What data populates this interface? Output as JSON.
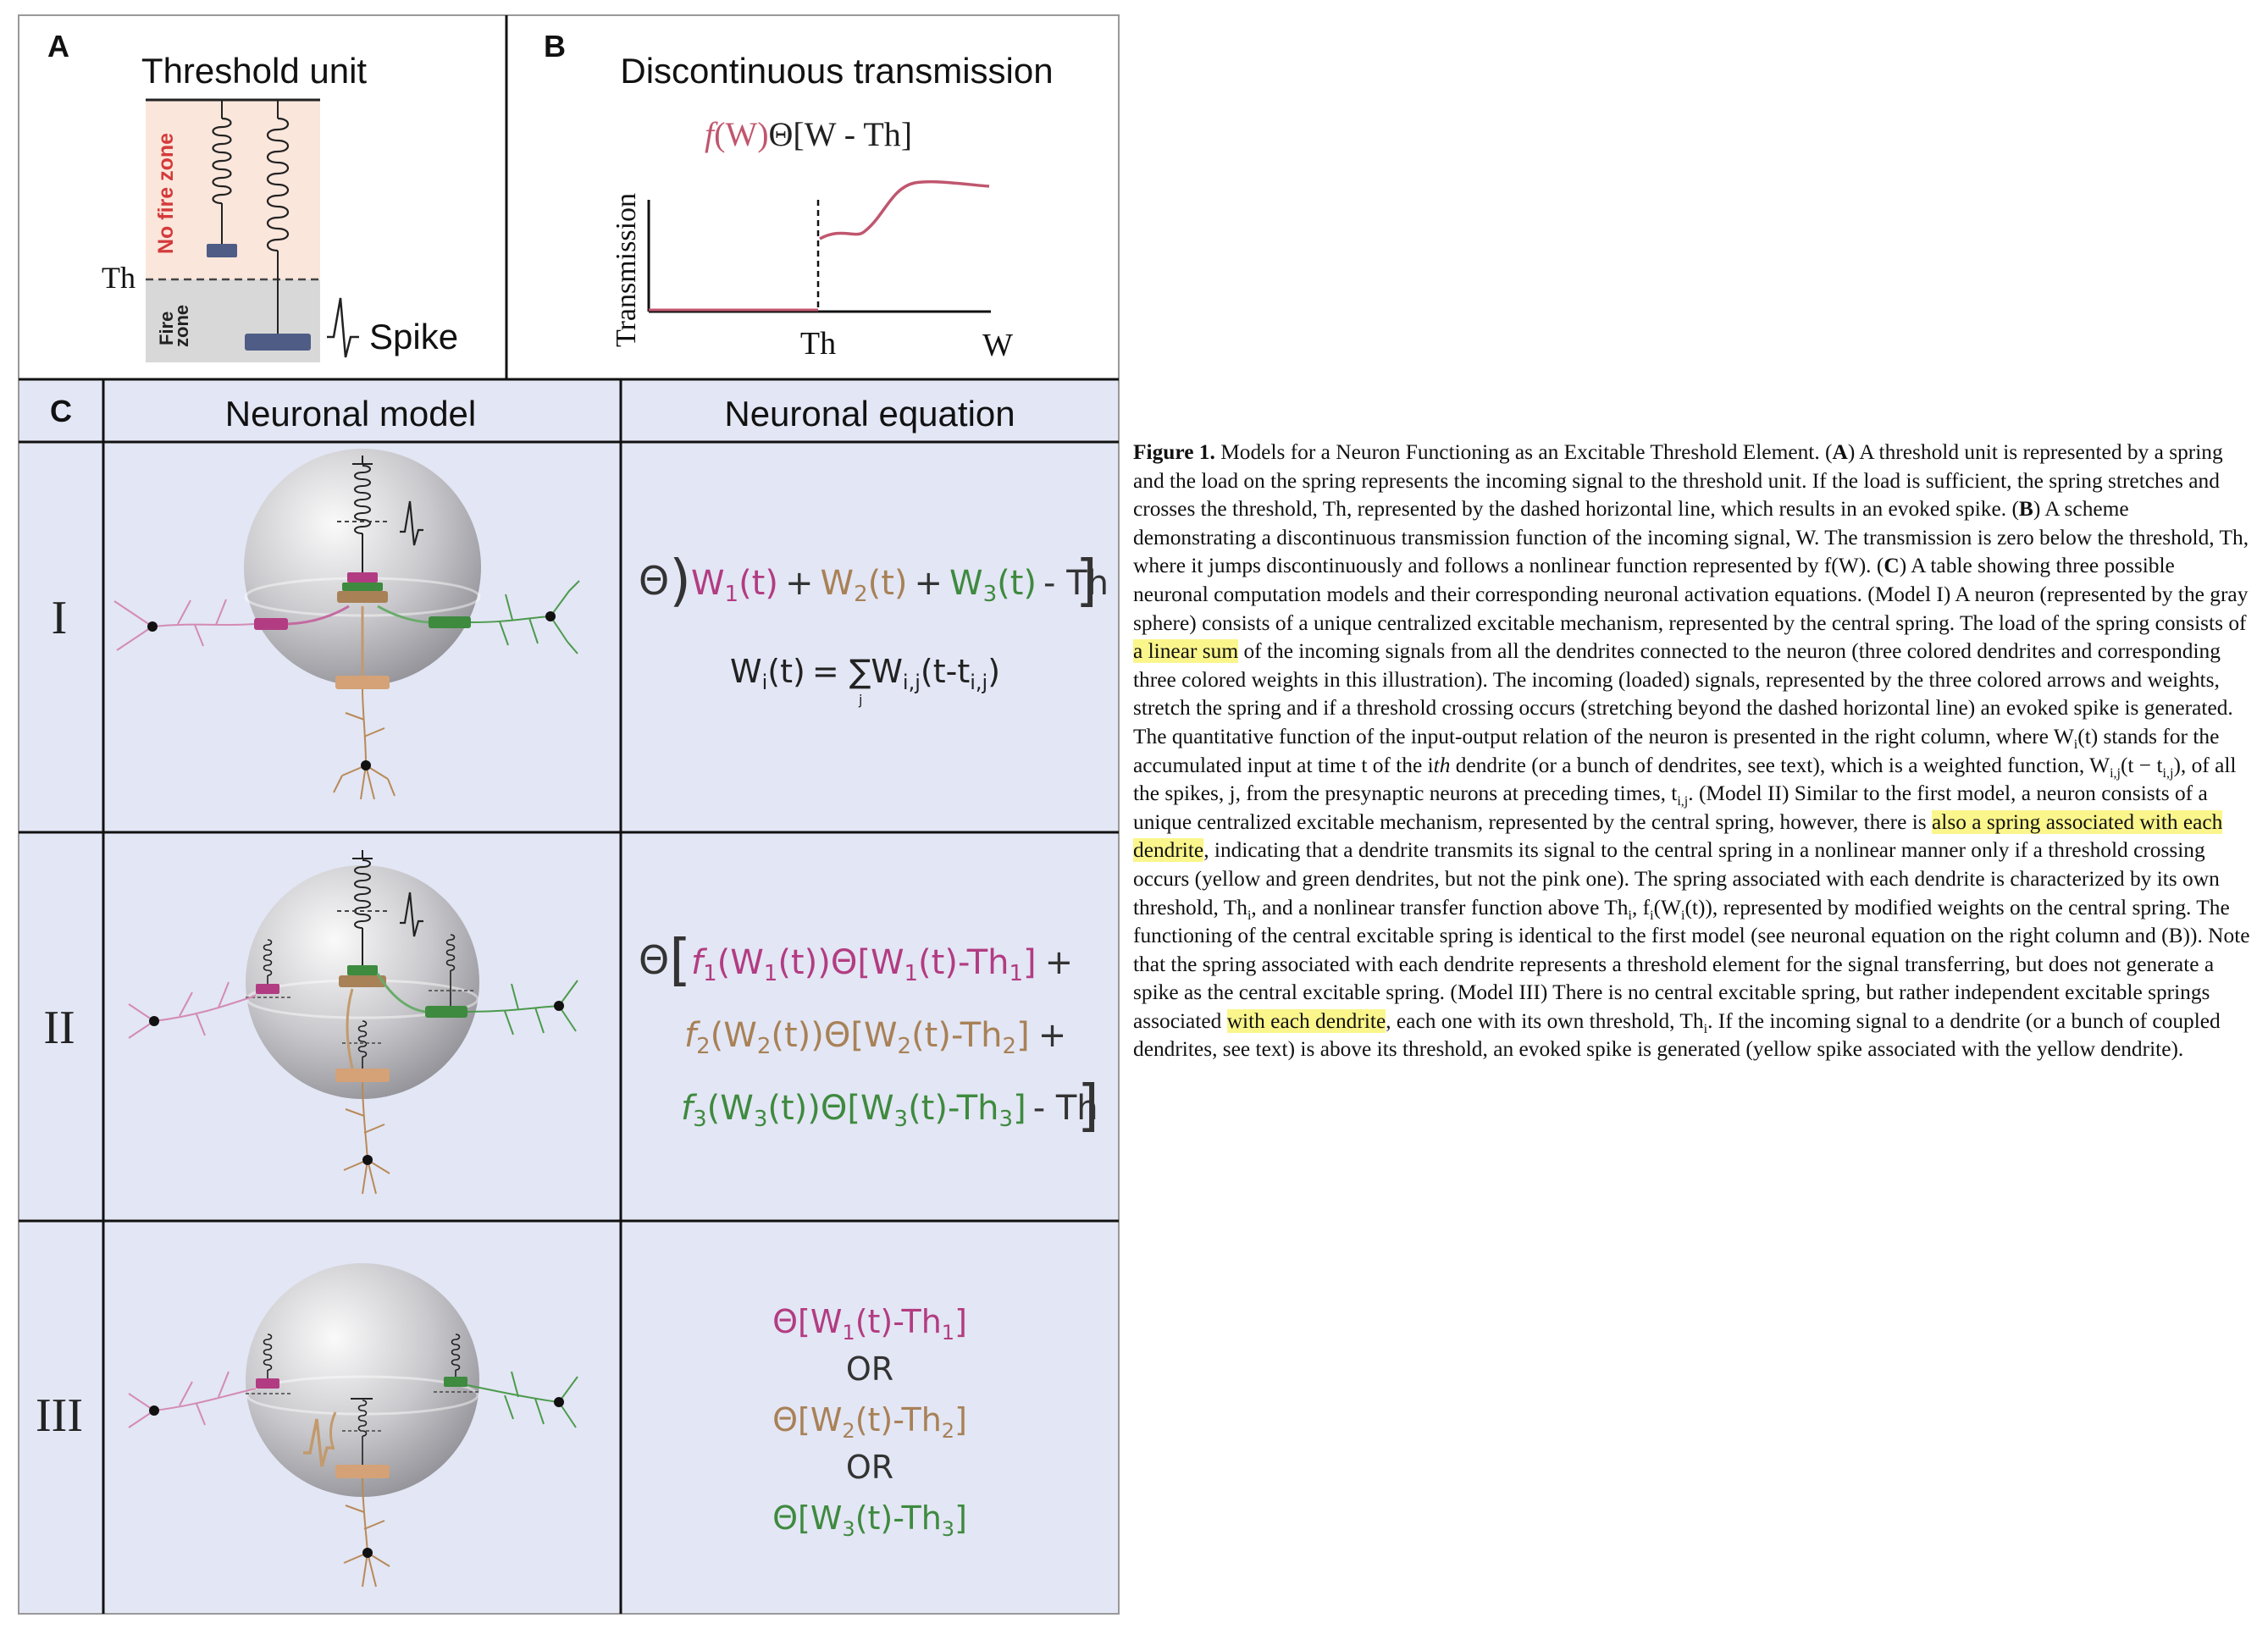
{
  "panels": {
    "a": {
      "letter": "A",
      "title": "Threshold unit",
      "no_fire_label": "No fire zone",
      "fire_label_1": "Fire",
      "fire_label_2": "zone",
      "th_label": "Th",
      "spike_label": "Spike"
    },
    "b": {
      "letter": "B",
      "title": "Discontinuous transmission",
      "formula_f": "f",
      "formula_rest_1": "(W)",
      "formula_rest_2": "Θ[W - Th]",
      "ylabel": "Transmission",
      "th_label": "Th",
      "w_label": "W"
    },
    "c": {
      "letter": "C",
      "col_model": "Neuronal model",
      "col_equation": "Neuronal equation",
      "rows": [
        {
          "label": "I"
        },
        {
          "label": "II"
        },
        {
          "label": "III"
        }
      ],
      "eq_terms": {
        "op_plus": "+",
        "minus_th": "- Th",
        "theta": "Θ",
        "w1": "W",
        "w2": "W",
        "w3": "W",
        "sub1": "1",
        "sub2": "2",
        "sub3": "3",
        "t": "(t)",
        "wi": "W",
        "wi_sub": "i",
        "eq_sum": "= ∑",
        "sum_sub": "j",
        "wij": "W",
        "wij_sub": "i,j",
        "t_minus": "(t-t",
        "tij_sub": "i,j",
        "close": ")",
        "or": "OR",
        "th": "-Th",
        "f": "f"
      }
    }
  },
  "colors": {
    "pink": "#b23c82",
    "tan": "#a88157",
    "green": "#3e8a3f",
    "curve": "#c0566e",
    "cell_bg": "#e3e6f4",
    "zone_nofire": "#fbe6dc",
    "zone_fire": "#d8d8d8",
    "highlight": "#fbf68c"
  },
  "caption": {
    "fig_label": "Figure 1.",
    "intro": " Models for a Neuron Functioning as an Excitable Threshold Element. (",
    "a": "A",
    "t1": ") A threshold unit is represented by a spring and the load on the spring represents the incoming signal to the threshold unit. If the load is sufficient, the spring stretches and crosses the threshold, Th, represented by the dashed horizontal line, which results in an evoked spike. (",
    "b": "B",
    "t2": ") A scheme demonstrating a discontinuous transmission function of the incoming signal, W. The transmission is zero below the threshold, Th, where it jumps discontinuously and follows a nonlinear function represented by f(W). (",
    "c": "C",
    "t3": ") A table showing three possible neuronal computation models and their corresponding neuronal activation equations. (Model I) A neuron (represented by the gray sphere) consists of a unique centralized excitable mechanism, represented by the central spring. The load of the spring consists of ",
    "hl1": "a linear sum",
    "t4": " of the incoming signals from all the dendrites connected to the neuron (three colored dendrites and corresponding three colored weights in this illustration). The incoming (loaded) signals, represented by the three colored arrows and weights, stretch the spring and if a threshold crossing occurs (stretching beyond the dashed horizontal line) an evoked spike is generated. The quantitative function of the input-output relation of the neuron is presented in the right column, where W",
    "s_i1": "i",
    "t5": "(t) stands for the accumulated input at time t of the i",
    "th_it": "th",
    "t6": " dendrite (or a bunch of dendrites, see text), which is a weighted function, W",
    "s_ij1": "i,j",
    "t7": "(t − t",
    "s_ij2": "i,j",
    "t8": "), of all the spikes, j, from the presynaptic neurons at preceding times, t",
    "s_ij3": "i,j",
    "t9": ". (Model II) Similar to the first model, a neuron consists of a unique centralized excitable mechanism, represented by the central spring, however, there is ",
    "hl2": "also a spring associated with each dendrite",
    "t10": ", indicating that a dendrite transmits its signal to the central spring in a nonlinear manner only if a threshold crossing occurs (yellow and green dendrites, but not the pink one). The spring associated with each dendrite is characterized by its own threshold, Th",
    "s_i2": "i",
    "t11": ", and a nonlinear transfer function above Th",
    "s_i3": "i",
    "t12": ", f",
    "s_i4": "i",
    "t13": "(W",
    "s_i5": "i",
    "t14": "(t)), represented by modified weights on the central spring. The functioning of the central excitable spring is identical to the first model (see neuronal equation on the right column and (B)). Note that the spring associated with each dendrite represents a threshold element for the signal transferring, but does not generate a spike as the central excitable spring. (Model III) There is no central excitable spring, but rather independent excitable springs associated ",
    "hl3": "with each dendrite",
    "t15": ", each one with its own threshold, Th",
    "s_i6": "i",
    "t16": ". If the incoming signal to a dendrite (or a bunch of coupled dendrites, see text) is above its threshold, an evoked spike is generated (yellow spike associated with the yellow dendrite)."
  }
}
